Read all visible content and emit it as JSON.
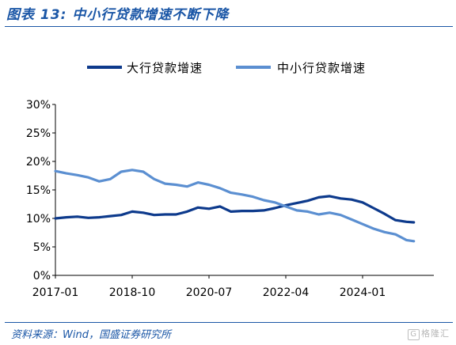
{
  "figure": {
    "title": "图表 13:  中小行贷款增速不断下降",
    "source": "资料来源：Wind，国盛证券研究所",
    "watermark": "格隆汇"
  },
  "colors": {
    "accent": "#1a56a6",
    "series_dark": "#0d3a8c",
    "series_light": "#5b8fd1"
  },
  "chart_data": {
    "type": "line",
    "x_tick_labels": [
      "2017-01",
      "2018-10",
      "2020-07",
      "2022-04",
      "2024-01"
    ],
    "y_tick_labels": [
      "0%",
      "5%",
      "10%",
      "15%",
      "20%",
      "25%",
      "30%"
    ],
    "ylim": [
      0,
      30
    ],
    "y_unit": "%",
    "x_start": "2017-01",
    "x_end": "2025-03",
    "legend_position": "top",
    "grid": false,
    "series": [
      {
        "name": "大行贷款增速",
        "color": "#0d3a8c",
        "x": [
          "2017-01",
          "2017-04",
          "2017-07",
          "2017-10",
          "2018-01",
          "2018-04",
          "2018-07",
          "2018-10",
          "2019-01",
          "2019-04",
          "2019-07",
          "2019-10",
          "2020-01",
          "2020-04",
          "2020-07",
          "2020-10",
          "2021-01",
          "2021-04",
          "2021-07",
          "2021-10",
          "2022-01",
          "2022-04",
          "2022-07",
          "2022-10",
          "2023-01",
          "2023-04",
          "2023-07",
          "2023-10",
          "2024-01",
          "2024-04",
          "2024-07",
          "2024-10",
          "2025-01",
          "2025-03"
        ],
        "values": [
          10.0,
          10.2,
          10.3,
          10.1,
          10.2,
          10.4,
          10.6,
          11.2,
          11.0,
          10.6,
          10.7,
          10.7,
          11.2,
          11.9,
          11.7,
          12.1,
          11.2,
          11.3,
          11.3,
          11.4,
          11.8,
          12.3,
          12.7,
          13.1,
          13.7,
          13.9,
          13.5,
          13.3,
          12.8,
          11.8,
          10.8,
          9.7,
          9.4,
          9.3
        ]
      },
      {
        "name": "中小行贷款增速",
        "color": "#5b8fd1",
        "x": [
          "2017-01",
          "2017-04",
          "2017-07",
          "2017-10",
          "2018-01",
          "2018-04",
          "2018-07",
          "2018-10",
          "2019-01",
          "2019-04",
          "2019-07",
          "2019-10",
          "2020-01",
          "2020-04",
          "2020-07",
          "2020-10",
          "2021-01",
          "2021-04",
          "2021-07",
          "2021-10",
          "2022-01",
          "2022-04",
          "2022-07",
          "2022-10",
          "2023-01",
          "2023-04",
          "2023-07",
          "2023-10",
          "2024-01",
          "2024-04",
          "2024-07",
          "2024-10",
          "2025-01",
          "2025-03"
        ],
        "values": [
          18.3,
          17.9,
          17.6,
          17.2,
          16.5,
          16.9,
          18.2,
          18.5,
          18.2,
          16.9,
          16.1,
          15.9,
          15.6,
          16.3,
          15.9,
          15.3,
          14.5,
          14.2,
          13.8,
          13.2,
          12.8,
          12.1,
          11.4,
          11.2,
          10.7,
          11.0,
          10.6,
          9.8,
          9.0,
          8.2,
          7.6,
          7.2,
          6.2,
          6.0
        ]
      }
    ]
  }
}
